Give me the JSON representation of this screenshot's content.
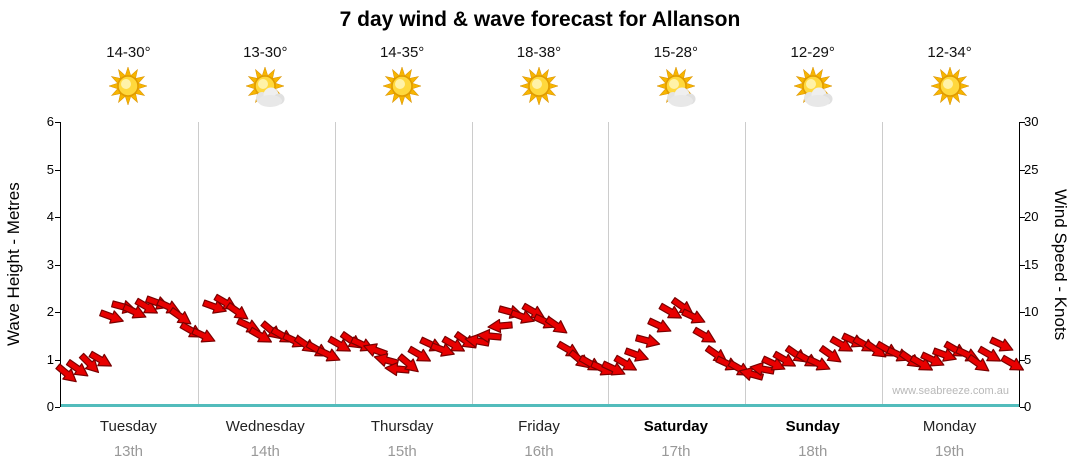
{
  "title": "7 day wind & wave forecast for Allanson",
  "watermark": "www.seabreeze.com.au",
  "axes": {
    "left_title": "Wave Height - Metres",
    "right_title": "Wind Speed - Knots",
    "left_ticks": [
      0,
      1,
      2,
      3,
      4,
      5,
      6
    ],
    "right_ticks": [
      0,
      5,
      10,
      15,
      20,
      25,
      30
    ],
    "left_range": [
      0,
      6
    ],
    "right_range": [
      0,
      30
    ]
  },
  "days": [
    {
      "name": "Tuesday",
      "date": "13th",
      "temp": "14-30°",
      "icon": "sunny",
      "weekend": false
    },
    {
      "name": "Wednesday",
      "date": "14th",
      "temp": "13-30°",
      "icon": "partly-cloudy",
      "weekend": false
    },
    {
      "name": "Thursday",
      "date": "15th",
      "temp": "14-35°",
      "icon": "sunny",
      "weekend": false
    },
    {
      "name": "Friday",
      "date": "16th",
      "temp": "18-38°",
      "icon": "sunny",
      "weekend": false
    },
    {
      "name": "Saturday",
      "date": "17th",
      "temp": "15-28°",
      "icon": "partly-cloudy",
      "weekend": true
    },
    {
      "name": "Sunday",
      "date": "18th",
      "temp": "12-29°",
      "icon": "partly-cloudy",
      "weekend": true
    },
    {
      "name": "Monday",
      "date": "19th",
      "temp": "12-34°",
      "icon": "sunny",
      "weekend": false
    }
  ],
  "chart_data": {
    "type": "wind-arrow-series",
    "title": "7 day wind & wave forecast for Allanson",
    "points_per_day": 12,
    "x_day_labels": [
      "Tuesday 13th",
      "Wednesday 14th",
      "Thursday 15th",
      "Friday 16th",
      "Saturday 17th",
      "Sunday 18th",
      "Monday 19th"
    ],
    "ylim_left": [
      0,
      6
    ],
    "ylim_right": [
      0,
      30
    ],
    "grid": "vertical-day-separators",
    "legend": "none",
    "series": [
      {
        "name": "Wind Speed",
        "unit": "knots",
        "axis": "right",
        "color": "#e80000",
        "values": [
          3.5,
          4,
          4.5,
          5,
          9.5,
          10.5,
          10,
          10.5,
          11,
          10.5,
          9.5,
          8,
          7.5,
          10.5,
          11,
          10,
          8.5,
          7.5,
          8,
          7.5,
          7,
          6.5,
          6,
          5.5,
          6.5,
          7,
          6.5,
          6,
          5,
          4,
          4.5,
          5.5,
          6.5,
          6,
          6.5,
          7,
          7,
          7.5,
          8.5,
          10,
          9.5,
          10,
          9,
          8.5,
          6,
          5,
          4.5,
          4,
          4,
          4.5,
          5.5,
          7,
          8.5,
          10,
          10.5,
          9.5,
          7.5,
          5.5,
          4.5,
          4,
          3.5,
          4,
          4.5,
          5,
          5.5,
          5,
          4.5,
          5.5,
          6.5,
          7,
          6.5,
          6,
          6,
          5.5,
          5,
          4.5,
          5,
          5.5,
          6,
          5.5,
          4.5,
          5.5,
          6.5,
          4.5
        ],
        "directions_deg": [
          40,
          35,
          45,
          30,
          20,
          15,
          25,
          30,
          20,
          25,
          35,
          30,
          25,
          20,
          30,
          35,
          25,
          30,
          40,
          30,
          25,
          35,
          30,
          25,
          30,
          35,
          25,
          200,
          195,
          185,
          40,
          30,
          25,
          20,
          30,
          35,
          190,
          185,
          175,
          15,
          20,
          30,
          25,
          35,
          30,
          40,
          30,
          25,
          25,
          30,
          20,
          15,
          25,
          30,
          35,
          25,
          30,
          35,
          25,
          30,
          195,
          190,
          25,
          30,
          35,
          30,
          25,
          35,
          30,
          25,
          30,
          35,
          30,
          25,
          35,
          30,
          25,
          20,
          30,
          25,
          35,
          30,
          25,
          30
        ]
      },
      {
        "name": "Wave Height",
        "unit": "metres",
        "axis": "left",
        "color": "#52bcbc",
        "constant_value": 0.05
      }
    ]
  },
  "colors": {
    "arrow_fill": "#e80000",
    "arrow_outline": "#7a0000",
    "wave_line": "#52bcbc",
    "grid_line": "#cccccc",
    "date_text": "#999999"
  }
}
